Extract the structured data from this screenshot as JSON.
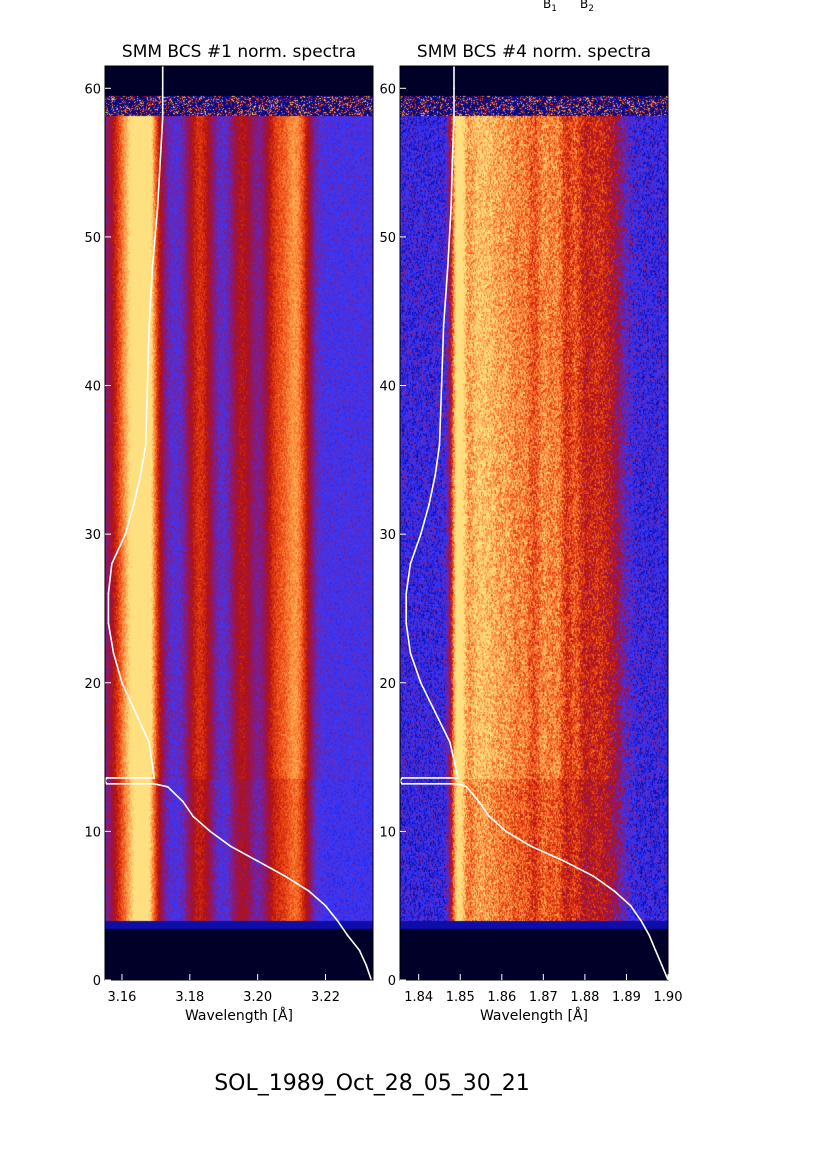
{
  "figure": {
    "top_labels": [
      {
        "base": "B",
        "sub": "1"
      },
      {
        "base": "B",
        "sub": "2"
      }
    ],
    "footer": "SOL_1989_Oct_28_05_30_21"
  },
  "chart_data": [
    {
      "type": "heatmap",
      "title": "SMM BCS #1 norm. spectra",
      "xlabel": "Wavelength [Å]",
      "ylabel": "",
      "xlim": [
        3.155,
        3.234
      ],
      "ylim": [
        0,
        61.5
      ],
      "xticks": [
        3.16,
        3.18,
        3.2,
        3.22
      ],
      "xtick_labels": [
        "3.16",
        "3.18",
        "3.20",
        "3.22"
      ],
      "yticks": [
        0,
        10,
        20,
        30,
        40,
        50,
        60
      ],
      "ytick_labels": [
        "0",
        "10",
        "20",
        "30",
        "40",
        "50",
        "60"
      ],
      "colormap": [
        "#000028",
        "#1010c0",
        "#3a3aff",
        "#8a1878",
        "#b01010",
        "#e84010",
        "#ff9040",
        "#ffe080"
      ],
      "data_rows_range": [
        4,
        58
      ],
      "noise": 0.16,
      "lines": [
        {
          "x": 3.1635,
          "width": 0.0045,
          "strength": 0.92
        },
        {
          "x": 3.1672,
          "width": 0.0025,
          "strength": 0.6
        },
        {
          "x": 3.183,
          "width": 0.0028,
          "strength": 0.5
        },
        {
          "x": 3.1955,
          "width": 0.0025,
          "strength": 0.38
        },
        {
          "x": 3.2055,
          "width": 0.0028,
          "strength": 0.48
        },
        {
          "x": 3.2115,
          "width": 0.0028,
          "strength": 0.72
        }
      ],
      "background_level": 0.26,
      "lightcurve": {
        "x": [
          3.2335,
          3.232,
          3.23,
          3.2265,
          3.2235,
          3.22,
          3.215,
          3.208,
          3.2,
          3.192,
          3.186,
          3.181,
          3.178,
          3.1735,
          3.1695,
          3.1555,
          3.155,
          3.1555,
          3.1695,
          3.168,
          3.164,
          3.16,
          3.1575,
          3.156,
          3.156,
          3.157,
          3.161,
          3.1635,
          3.1655,
          3.167,
          3.1675,
          3.168,
          3.169,
          3.1705,
          3.1715,
          3.172,
          3.172,
          3.172
        ],
        "y": [
          0,
          1,
          2,
          3,
          4,
          5,
          6,
          7,
          8,
          9,
          10,
          11,
          12,
          13,
          13.2,
          13.2,
          13.4,
          13.6,
          13.6,
          16,
          18,
          20,
          22,
          24,
          26,
          28,
          30,
          32,
          34,
          36,
          40,
          44,
          48,
          52,
          56,
          58,
          60,
          61.5
        ]
      }
    },
    {
      "type": "heatmap",
      "title": "SMM BCS #4 norm. spectra",
      "xlabel": "Wavelength [Å]",
      "ylabel": "",
      "xlim": [
        1.8355,
        1.9
      ],
      "ylim": [
        0,
        61.5
      ],
      "xticks": [
        1.84,
        1.85,
        1.86,
        1.87,
        1.88,
        1.89,
        1.9
      ],
      "xtick_labels": [
        "1.84",
        "1.85",
        "1.86",
        "1.87",
        "1.88",
        "1.89",
        "1.90"
      ],
      "yticks": [
        0,
        10,
        20,
        30,
        40,
        50,
        60
      ],
      "ytick_labels": [
        "0",
        "10",
        "20",
        "30",
        "40",
        "50",
        "60"
      ],
      "colormap": [
        "#000028",
        "#1010c0",
        "#3a3aff",
        "#8a1878",
        "#b01010",
        "#e84010",
        "#ff9040",
        "#ffe080"
      ],
      "data_rows_range": [
        4,
        58
      ],
      "noise": 0.34,
      "lines": [
        {
          "x": 1.8495,
          "width": 0.0012,
          "strength": 1.0
        },
        {
          "x": 1.853,
          "width": 0.0025,
          "strength": 0.75
        },
        {
          "x": 1.8575,
          "width": 0.0025,
          "strength": 0.7
        },
        {
          "x": 1.862,
          "width": 0.0022,
          "strength": 0.65
        },
        {
          "x": 1.866,
          "width": 0.0018,
          "strength": 0.62
        },
        {
          "x": 1.87,
          "width": 0.0016,
          "strength": 0.7
        },
        {
          "x": 1.8735,
          "width": 0.0016,
          "strength": 0.7
        },
        {
          "x": 1.8775,
          "width": 0.0016,
          "strength": 0.55
        },
        {
          "x": 1.882,
          "width": 0.0025,
          "strength": 0.45
        },
        {
          "x": 1.8865,
          "width": 0.0025,
          "strength": 0.32
        }
      ],
      "background_level": 0.2,
      "lightcurve": {
        "x": [
          1.9,
          1.8985,
          1.897,
          1.8955,
          1.8935,
          1.891,
          1.887,
          1.882,
          1.875,
          1.867,
          1.861,
          1.857,
          1.8545,
          1.8515,
          1.8495,
          1.836,
          1.8355,
          1.836,
          1.8495,
          1.8475,
          1.844,
          1.8405,
          1.838,
          1.837,
          1.837,
          1.838,
          1.8405,
          1.8425,
          1.844,
          1.845,
          1.8455,
          1.846,
          1.847,
          1.8478,
          1.8482,
          1.8485,
          1.8485,
          1.8485
        ],
        "y": [
          0,
          1,
          2,
          3,
          4,
          5,
          6,
          7,
          8,
          9,
          10,
          11,
          12,
          13,
          13.2,
          13.2,
          13.4,
          13.6,
          13.6,
          16,
          18,
          20,
          22,
          24,
          26,
          28,
          30,
          32,
          34,
          36,
          40,
          44,
          48,
          52,
          56,
          58,
          60,
          61.5
        ]
      }
    }
  ]
}
